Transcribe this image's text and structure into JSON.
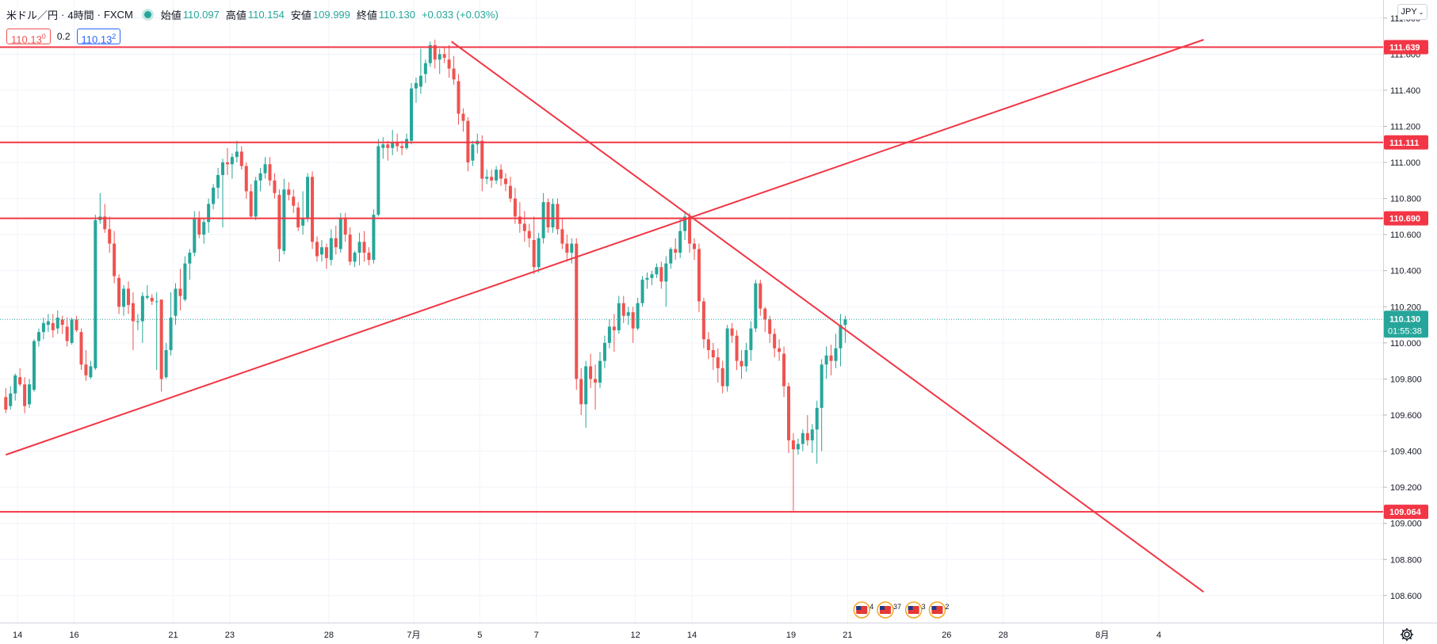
{
  "header": {
    "symbol": "米ドル／円",
    "interval": "4時間",
    "broker": "FXCM",
    "ohlc": [
      {
        "label": "始値",
        "value": "110.097"
      },
      {
        "label": "高値",
        "value": "110.154"
      },
      {
        "label": "安値",
        "value": "109.999"
      },
      {
        "label": "終値",
        "value": "110.130"
      }
    ],
    "change": "+0.033 (+0.03%)"
  },
  "price_box": {
    "sell": "110.130",
    "spread": "0.2",
    "buy": "110.132"
  },
  "currency_button": "JPY",
  "colors": {
    "up": "#26a69a",
    "down": "#ef5350",
    "drawing": "#f23645",
    "current": "#26a69a"
  },
  "chart_data": {
    "type": "candlestick",
    "ylim": [
      108.45,
      111.9
    ],
    "y_ticks": [
      108.6,
      108.8,
      109.0,
      109.2,
      109.4,
      109.6,
      109.8,
      110.0,
      110.2,
      110.4,
      110.6,
      110.8,
      111.0,
      111.2,
      111.4,
      111.6,
      111.8
    ],
    "x_labels": [
      {
        "label": "14",
        "bar": 2.5
      },
      {
        "label": "16",
        "bar": 14.5
      },
      {
        "label": "21",
        "bar": 35.5
      },
      {
        "label": "23",
        "bar": 47.5
      },
      {
        "label": "28",
        "bar": 68.5
      },
      {
        "label": "7月",
        "bar": 86.5
      },
      {
        "label": "5",
        "bar": 100.5
      },
      {
        "label": "7",
        "bar": 112.5
      },
      {
        "label": "12",
        "bar": 133.5
      },
      {
        "label": "14",
        "bar": 145.5
      },
      {
        "label": "19",
        "bar": 166.5
      },
      {
        "label": "21",
        "bar": 178.5
      },
      {
        "label": "26",
        "bar": 199.5
      },
      {
        "label": "28",
        "bar": 211.5
      },
      {
        "label": "8月",
        "bar": 232.5
      },
      {
        "label": "4",
        "bar": 244.5
      }
    ],
    "current_price": {
      "value": "110.130",
      "countdown": "01:55:38"
    },
    "horizontal_levels": [
      {
        "label": "111.639",
        "value": 111.639
      },
      {
        "label": "111.111",
        "value": 111.111
      },
      {
        "label": "110.690",
        "value": 110.69
      },
      {
        "label": "109.064",
        "value": 109.064
      }
    ],
    "trend_lines": [
      {
        "from": {
          "bar": 0,
          "price": 109.38
        },
        "to": {
          "bar": 254,
          "price": 111.68
        }
      },
      {
        "from": {
          "bar": 94.5,
          "price": 111.67
        },
        "to": {
          "bar": 254,
          "price": 108.62
        }
      }
    ],
    "anchors": [
      {
        "bar": 0,
        "date": "6/13"
      },
      {
        "bar": 254,
        "date": "8/6"
      }
    ],
    "bars": [
      [
        109.7,
        109.75,
        109.61,
        109.63
      ],
      [
        109.65,
        109.76,
        109.63,
        109.72
      ],
      [
        109.72,
        109.83,
        109.68,
        109.82
      ],
      [
        109.81,
        109.86,
        109.76,
        109.77
      ],
      [
        109.77,
        109.81,
        109.61,
        109.65
      ],
      [
        109.66,
        109.8,
        109.64,
        109.77
      ],
      [
        109.74,
        110.02,
        109.73,
        110.01
      ],
      [
        110.01,
        110.08,
        109.98,
        110.06
      ],
      [
        110.06,
        110.14,
        110.02,
        110.11
      ],
      [
        110.1,
        110.16,
        110.06,
        110.12
      ],
      [
        110.11,
        110.16,
        110.03,
        110.07
      ],
      [
        110.08,
        110.18,
        110.05,
        110.14
      ],
      [
        110.13,
        110.15,
        110.05,
        110.1
      ],
      [
        110.09,
        110.14,
        109.98,
        110.01
      ],
      [
        110.0,
        110.14,
        109.99,
        110.13
      ],
      [
        110.13,
        110.15,
        110.06,
        110.07
      ],
      [
        110.06,
        110.08,
        109.85,
        109.88
      ],
      [
        109.88,
        109.96,
        109.79,
        109.82
      ],
      [
        109.81,
        109.9,
        109.8,
        109.87
      ],
      [
        109.86,
        110.71,
        109.85,
        110.68
      ],
      [
        110.68,
        110.83,
        110.66,
        110.7
      ],
      [
        110.7,
        110.77,
        110.61,
        110.63
      ],
      [
        110.63,
        110.7,
        110.5,
        110.55
      ],
      [
        110.55,
        110.62,
        110.33,
        110.37
      ],
      [
        110.36,
        110.38,
        110.16,
        110.2
      ],
      [
        110.2,
        110.32,
        110.15,
        110.3
      ],
      [
        110.3,
        110.34,
        110.16,
        110.21
      ],
      [
        110.22,
        110.28,
        109.96,
        110.12
      ],
      [
        110.12,
        110.16,
        110.07,
        110.12
      ],
      [
        110.12,
        110.28,
        110.0,
        110.26
      ],
      [
        110.25,
        110.32,
        110.24,
        110.26
      ],
      [
        110.25,
        110.27,
        110.21,
        110.23
      ],
      [
        110.23,
        110.28,
        109.85,
        110.23
      ],
      [
        110.24,
        110.24,
        109.73,
        109.8
      ],
      [
        109.81,
        110.0,
        109.8,
        109.96
      ],
      [
        109.96,
        110.28,
        109.93,
        110.14
      ],
      [
        110.15,
        110.33,
        110.1,
        110.3
      ],
      [
        110.3,
        110.41,
        110.18,
        110.26
      ],
      [
        110.24,
        110.48,
        110.23,
        110.44
      ],
      [
        110.44,
        110.52,
        110.35,
        110.5
      ],
      [
        110.5,
        110.73,
        110.48,
        110.69
      ],
      [
        110.69,
        110.73,
        110.58,
        110.6
      ],
      [
        110.6,
        110.69,
        110.55,
        110.67
      ],
      [
        110.67,
        110.8,
        110.61,
        110.77
      ],
      [
        110.77,
        110.88,
        110.74,
        110.86
      ],
      [
        110.86,
        110.97,
        110.8,
        110.93
      ],
      [
        110.93,
        111.02,
        110.64,
        111.0
      ],
      [
        111.0,
        111.08,
        110.93,
        110.99
      ],
      [
        110.99,
        111.05,
        110.91,
        111.03
      ],
      [
        111.03,
        111.12,
        111.0,
        111.06
      ],
      [
        111.06,
        111.09,
        110.96,
        110.98
      ],
      [
        110.98,
        111.0,
        110.8,
        110.84
      ],
      [
        110.84,
        110.88,
        110.69,
        110.7
      ],
      [
        110.7,
        110.92,
        110.68,
        110.9
      ],
      [
        110.9,
        110.97,
        110.84,
        110.94
      ],
      [
        110.94,
        111.03,
        110.91,
        110.99
      ],
      [
        110.99,
        111.03,
        110.87,
        110.9
      ],
      [
        110.9,
        110.94,
        110.8,
        110.83
      ],
      [
        110.82,
        110.85,
        110.45,
        110.52
      ],
      [
        110.51,
        110.91,
        110.49,
        110.85
      ],
      [
        110.85,
        110.89,
        110.79,
        110.82
      ],
      [
        110.81,
        110.85,
        110.72,
        110.76
      ],
      [
        110.75,
        110.78,
        110.62,
        110.64
      ],
      [
        110.65,
        110.84,
        110.6,
        110.69
      ],
      [
        110.69,
        110.94,
        110.67,
        110.92
      ],
      [
        110.92,
        110.95,
        110.52,
        110.56
      ],
      [
        110.56,
        110.59,
        110.45,
        110.48
      ],
      [
        110.49,
        110.57,
        110.45,
        110.53
      ],
      [
        110.53,
        110.55,
        110.41,
        110.47
      ],
      [
        110.46,
        110.63,
        110.43,
        110.58
      ],
      [
        110.58,
        110.65,
        110.49,
        110.53
      ],
      [
        110.52,
        110.72,
        110.5,
        110.69
      ],
      [
        110.69,
        110.72,
        110.56,
        110.6
      ],
      [
        110.6,
        110.64,
        110.43,
        110.45
      ],
      [
        110.45,
        110.51,
        110.42,
        110.5
      ],
      [
        110.5,
        110.61,
        110.43,
        110.56
      ],
      [
        110.56,
        110.62,
        110.45,
        110.5
      ],
      [
        110.5,
        110.53,
        110.43,
        110.46
      ],
      [
        110.46,
        110.74,
        110.44,
        110.71
      ],
      [
        110.71,
        111.13,
        110.7,
        111.09
      ],
      [
        111.08,
        111.14,
        111.02,
        111.1
      ],
      [
        111.1,
        111.12,
        111.01,
        111.08
      ],
      [
        111.08,
        111.18,
        111.04,
        111.11
      ],
      [
        111.11,
        111.16,
        111.06,
        111.09
      ],
      [
        111.09,
        111.12,
        111.04,
        111.08
      ],
      [
        111.08,
        111.16,
        111.07,
        111.13
      ],
      [
        111.12,
        111.44,
        111.1,
        111.41
      ],
      [
        111.41,
        111.47,
        111.33,
        111.44
      ],
      [
        111.42,
        111.63,
        111.38,
        111.48
      ],
      [
        111.49,
        111.57,
        111.44,
        111.55
      ],
      [
        111.55,
        111.67,
        111.53,
        111.65
      ],
      [
        111.65,
        111.68,
        111.52,
        111.57
      ],
      [
        111.57,
        111.63,
        111.49,
        111.6
      ],
      [
        111.6,
        111.64,
        111.55,
        111.58
      ],
      [
        111.57,
        111.65,
        111.47,
        111.52
      ],
      [
        111.52,
        111.59,
        111.43,
        111.46
      ],
      [
        111.45,
        111.49,
        111.21,
        111.27
      ],
      [
        111.27,
        111.3,
        111.17,
        111.23
      ],
      [
        111.23,
        111.25,
        110.95,
        111.0
      ],
      [
        111.01,
        111.12,
        110.98,
        111.1
      ],
      [
        111.1,
        111.16,
        111.05,
        111.12
      ],
      [
        111.12,
        111.15,
        110.84,
        110.91
      ],
      [
        110.91,
        110.96,
        110.88,
        110.92
      ],
      [
        110.92,
        110.96,
        110.86,
        110.9
      ],
      [
        110.9,
        110.98,
        110.88,
        110.96
      ],
      [
        110.96,
        110.99,
        110.87,
        110.91
      ],
      [
        110.91,
        110.94,
        110.84,
        110.88
      ],
      [
        110.87,
        110.92,
        110.78,
        110.8
      ],
      [
        110.8,
        110.86,
        110.66,
        110.7
      ],
      [
        110.7,
        110.78,
        110.61,
        110.66
      ],
      [
        110.66,
        110.73,
        110.56,
        110.62
      ],
      [
        110.62,
        110.66,
        110.53,
        110.58
      ],
      [
        110.57,
        110.7,
        110.38,
        110.42
      ],
      [
        110.42,
        110.61,
        110.39,
        110.58
      ],
      [
        110.58,
        110.83,
        110.55,
        110.78
      ],
      [
        110.78,
        110.8,
        110.61,
        110.64
      ],
      [
        110.64,
        110.8,
        110.61,
        110.77
      ],
      [
        110.77,
        110.8,
        110.6,
        110.63
      ],
      [
        110.63,
        110.69,
        110.52,
        110.55
      ],
      [
        110.55,
        110.6,
        110.45,
        110.5
      ],
      [
        110.5,
        110.58,
        110.44,
        110.55
      ],
      [
        110.55,
        110.58,
        109.74,
        109.8
      ],
      [
        109.8,
        109.86,
        109.6,
        109.66
      ],
      [
        109.66,
        109.9,
        109.53,
        109.87
      ],
      [
        109.87,
        109.94,
        109.75,
        109.8
      ],
      [
        109.8,
        109.88,
        109.63,
        109.78
      ],
      [
        109.78,
        109.95,
        109.75,
        109.9
      ],
      [
        109.9,
        110.04,
        109.86,
        110.0
      ],
      [
        110.0,
        110.13,
        109.97,
        110.09
      ],
      [
        110.09,
        110.16,
        109.95,
        110.07
      ],
      [
        110.07,
        110.26,
        110.05,
        110.22
      ],
      [
        110.22,
        110.26,
        110.11,
        110.15
      ],
      [
        110.15,
        110.2,
        110.1,
        110.17
      ],
      [
        110.17,
        110.2,
        110.0,
        110.08
      ],
      [
        110.08,
        110.25,
        110.07,
        110.22
      ],
      [
        110.22,
        110.37,
        110.2,
        110.35
      ],
      [
        110.35,
        110.39,
        110.3,
        110.36
      ],
      [
        110.36,
        110.4,
        110.32,
        110.38
      ],
      [
        110.38,
        110.44,
        110.36,
        110.42
      ],
      [
        110.42,
        110.45,
        110.3,
        110.34
      ],
      [
        110.34,
        110.48,
        110.2,
        110.44
      ],
      [
        110.44,
        110.53,
        110.41,
        110.52
      ],
      [
        110.52,
        110.58,
        110.46,
        110.5
      ],
      [
        110.5,
        110.69,
        110.47,
        110.62
      ],
      [
        110.62,
        110.73,
        110.57,
        110.7
      ],
      [
        110.7,
        110.72,
        110.5,
        110.55
      ],
      [
        110.55,
        110.58,
        110.46,
        110.52
      ],
      [
        110.52,
        110.55,
        110.17,
        110.23
      ],
      [
        110.23,
        110.25,
        109.97,
        110.02
      ],
      [
        110.02,
        110.06,
        109.91,
        109.96
      ],
      [
        109.96,
        110.0,
        109.85,
        109.92
      ],
      [
        109.92,
        109.97,
        109.78,
        109.86
      ],
      [
        109.86,
        109.9,
        109.72,
        109.76
      ],
      [
        109.76,
        110.1,
        109.73,
        110.08
      ],
      [
        110.08,
        110.11,
        110.0,
        110.04
      ],
      [
        110.04,
        110.07,
        109.85,
        109.9
      ],
      [
        109.9,
        109.96,
        109.8,
        109.87
      ],
      [
        109.87,
        110.0,
        109.84,
        109.96
      ],
      [
        109.96,
        110.12,
        109.9,
        110.08
      ],
      [
        110.08,
        110.35,
        110.06,
        110.33
      ],
      [
        110.33,
        110.35,
        110.15,
        110.19
      ],
      [
        110.19,
        110.2,
        110.06,
        110.13
      ],
      [
        110.13,
        110.15,
        110.0,
        110.05
      ],
      [
        110.05,
        110.08,
        109.92,
        109.97
      ],
      [
        109.97,
        110.02,
        109.9,
        109.95
      ],
      [
        109.94,
        109.98,
        109.7,
        109.76
      ],
      [
        109.76,
        109.78,
        109.39,
        109.46
      ],
      [
        109.46,
        109.5,
        109.07,
        109.41
      ],
      [
        109.41,
        109.47,
        109.38,
        109.44
      ],
      [
        109.44,
        109.52,
        109.4,
        109.5
      ],
      [
        109.5,
        109.6,
        109.43,
        109.46
      ],
      [
        109.46,
        109.55,
        109.39,
        109.52
      ],
      [
        109.52,
        109.68,
        109.33,
        109.64
      ],
      [
        109.64,
        109.91,
        109.4,
        109.88
      ],
      [
        109.88,
        109.98,
        109.8,
        109.93
      ],
      [
        109.93,
        109.99,
        109.82,
        109.9
      ],
      [
        109.9,
        110.05,
        109.86,
        109.97
      ],
      [
        109.97,
        110.16,
        109.87,
        110.1
      ],
      [
        110.1,
        110.15,
        110.0,
        110.13
      ]
    ],
    "event_markers": [
      {
        "bar": 181.5,
        "text": "4"
      },
      {
        "bar": 186.5,
        "text": "37"
      },
      {
        "bar": 192.5,
        "text": "3"
      },
      {
        "bar": 197.5,
        "text": "2"
      }
    ]
  }
}
